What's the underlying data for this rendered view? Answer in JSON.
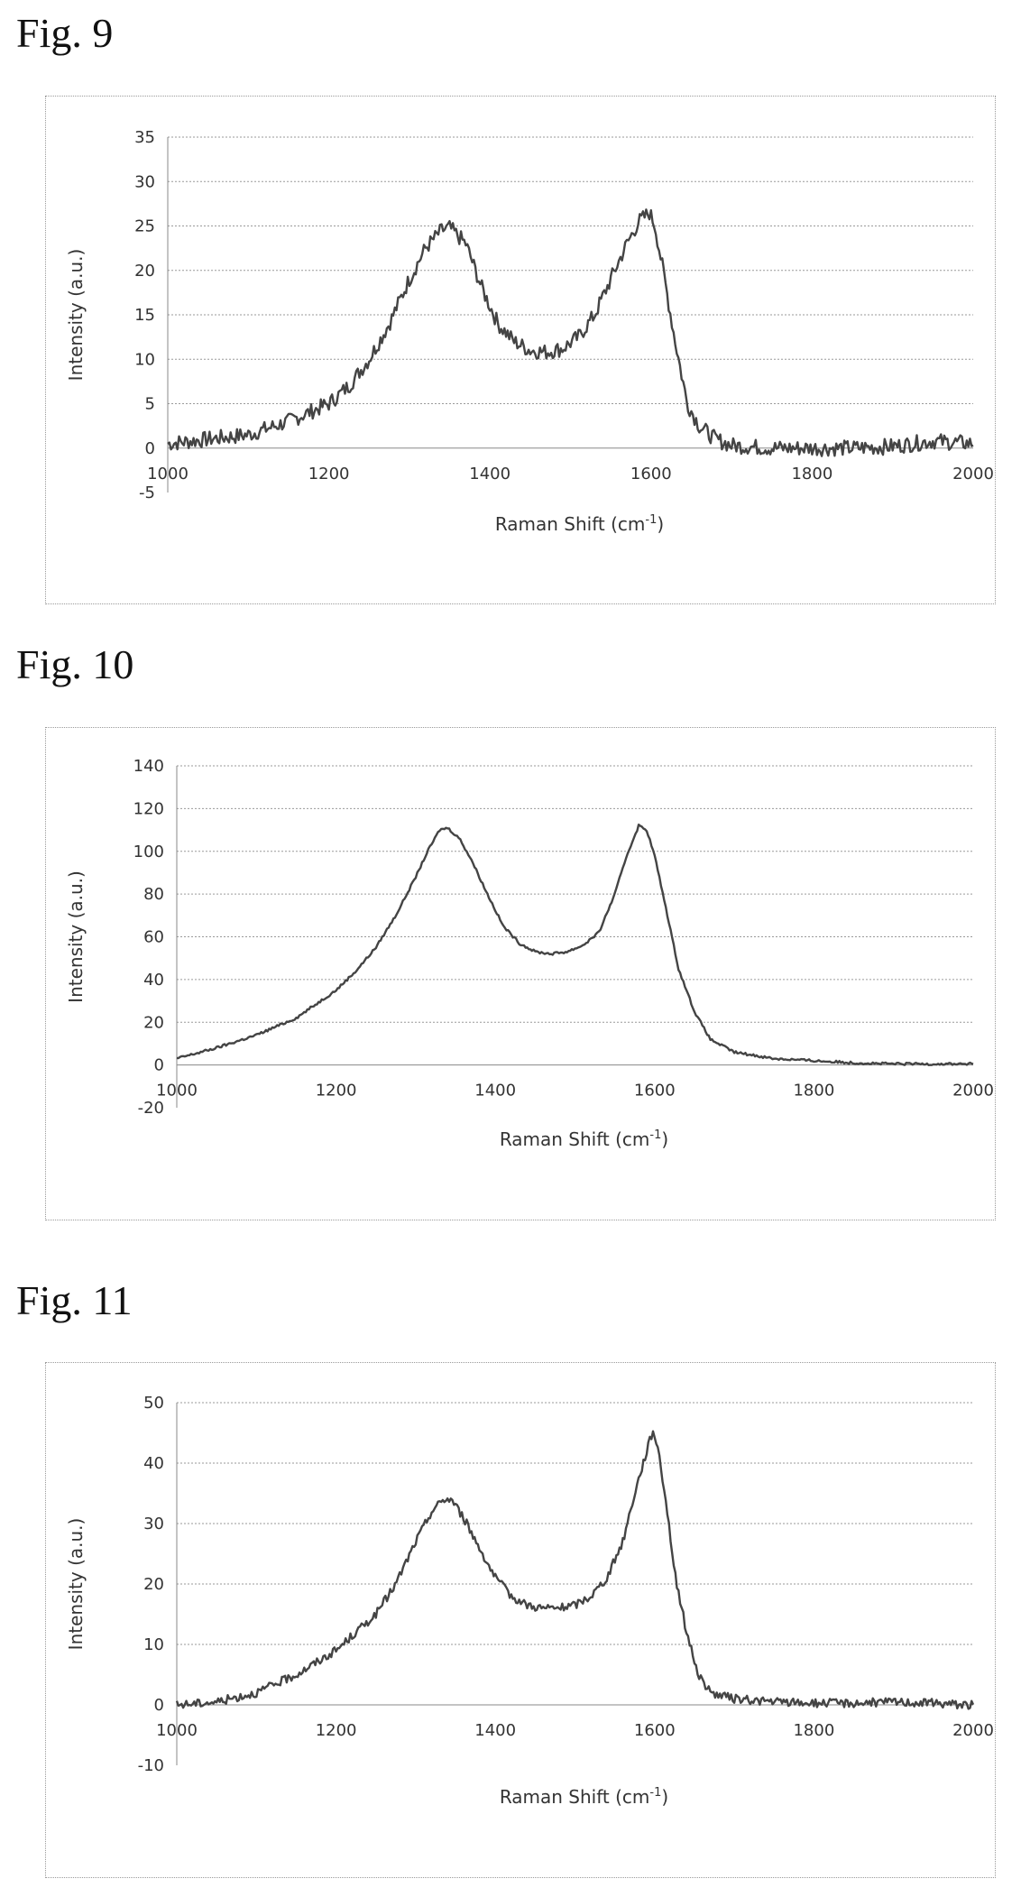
{
  "figures": [
    {
      "label": "Fig. 9"
    },
    {
      "label": "Fig. 10"
    },
    {
      "label": "Fig. 11"
    }
  ],
  "chart_data": [
    {
      "type": "line",
      "figure_label": "Fig. 9",
      "xlabel": "Raman Shift (cm-1)",
      "ylabel": "Intensity (a.u.)",
      "xlim": [
        1000,
        2000
      ],
      "ylim": [
        -5,
        35
      ],
      "xticks": [
        1000,
        1200,
        1400,
        1600,
        1800,
        2000
      ],
      "yticks": [
        -5,
        0,
        5,
        10,
        15,
        20,
        25,
        30,
        35
      ],
      "grid": "horizontal dotted",
      "legend": "none",
      "line_color": "#444444",
      "noise": 0.9,
      "series": [
        {
          "x": [
            1000,
            1050,
            1100,
            1150,
            1200,
            1225,
            1250,
            1275,
            1300,
            1320,
            1340,
            1350,
            1370,
            1390,
            1410,
            1430,
            1450,
            1470,
            1490,
            1510,
            1530,
            1550,
            1570,
            1585,
            1598,
            1605,
            1615,
            1630,
            1645,
            1660,
            1680,
            1700,
            1750,
            1800,
            1850,
            1900,
            1950,
            2000
          ],
          "y": [
            0.5,
            1.0,
            1.5,
            3,
            5,
            7,
            10,
            14,
            19,
            22.5,
            24.5,
            24.8,
            23,
            18,
            14,
            12,
            11,
            10.8,
            11.2,
            12.5,
            15,
            19,
            23,
            25.5,
            26.5,
            25,
            20,
            12,
            5,
            2.5,
            1,
            0.3,
            0,
            0,
            0,
            0.2,
            0.8,
            0.5
          ]
        }
      ]
    },
    {
      "type": "line",
      "figure_label": "Fig. 10",
      "xlabel": "Raman Shift (cm-1)",
      "ylabel": "Intensity (a.u.)",
      "xlim": [
        1000,
        2000
      ],
      "ylim": [
        -20,
        140
      ],
      "xticks": [
        1000,
        1200,
        1400,
        1600,
        1800,
        2000
      ],
      "yticks": [
        -20,
        0,
        20,
        40,
        60,
        80,
        100,
        120,
        140
      ],
      "grid": "horizontal dotted",
      "legend": "none",
      "line_color": "#444444",
      "noise": 0.6,
      "series": [
        {
          "x": [
            1000,
            1050,
            1100,
            1150,
            1200,
            1225,
            1250,
            1275,
            1300,
            1315,
            1330,
            1340,
            1355,
            1370,
            1390,
            1410,
            1430,
            1450,
            1470,
            1490,
            1510,
            1530,
            1550,
            1565,
            1580,
            1590,
            1600,
            1615,
            1630,
            1650,
            1670,
            1700,
            1750,
            1800,
            1850,
            1900,
            1950,
            2000
          ],
          "y": [
            3,
            8,
            14,
            22,
            35,
            44,
            55,
            70,
            88,
            100,
            110,
            111,
            106,
            96,
            80,
            65,
            57,
            53,
            52,
            53,
            56,
            62,
            80,
            98,
            112,
            110,
            98,
            72,
            45,
            25,
            12,
            6,
            3,
            2,
            1,
            0.5,
            0.5,
            0.5
          ]
        }
      ]
    },
    {
      "type": "line",
      "figure_label": "Fig. 11",
      "xlabel": "Raman Shift (cm-1)",
      "ylabel": "Intensity (a.u.)",
      "xlim": [
        1000,
        2000
      ],
      "ylim": [
        -10,
        50
      ],
      "xticks": [
        1000,
        1200,
        1400,
        1600,
        1800,
        2000
      ],
      "yticks": [
        -10,
        0,
        10,
        20,
        30,
        40,
        50
      ],
      "grid": "horizontal dotted",
      "legend": "none",
      "line_color": "#444444",
      "noise": 0.7,
      "series": [
        {
          "x": [
            1000,
            1050,
            1100,
            1150,
            1200,
            1225,
            1250,
            1275,
            1300,
            1320,
            1335,
            1345,
            1360,
            1380,
            1400,
            1420,
            1440,
            1460,
            1480,
            1500,
            1520,
            1540,
            1560,
            1575,
            1590,
            1598,
            1605,
            1615,
            1625,
            1640,
            1655,
            1670,
            1700,
            1750,
            1800,
            1850,
            1900,
            1950,
            2000
          ],
          "y": [
            0,
            0.5,
            2,
            5,
            9,
            12,
            15,
            20,
            27,
            32,
            34,
            34,
            31,
            26,
            21,
            18,
            16.5,
            16,
            16,
            16.5,
            18,
            21,
            27,
            35,
            42,
            45.5,
            42,
            33,
            22,
            12,
            5,
            2,
            1,
            0.5,
            0.3,
            0.3,
            0.5,
            0.3,
            0
          ]
        }
      ]
    }
  ]
}
